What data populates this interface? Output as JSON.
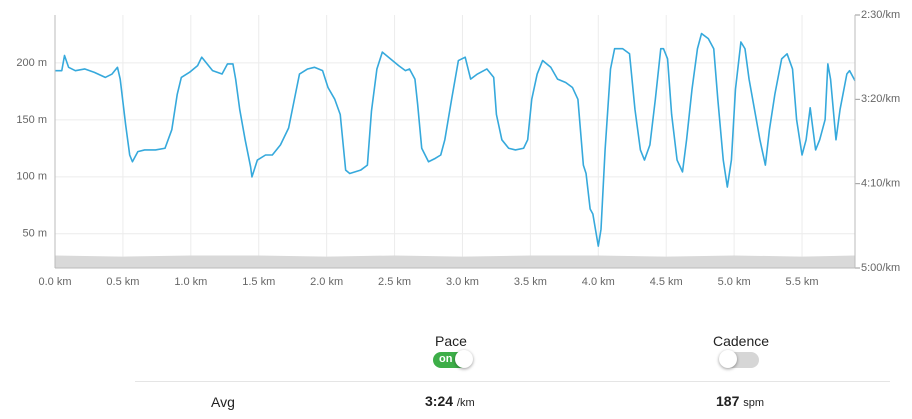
{
  "chart_data": {
    "type": "line",
    "x": [
      0,
      0.05,
      0.07,
      0.1,
      0.15,
      0.22,
      0.29,
      0.37,
      0.42,
      0.46,
      0.48,
      0.52,
      0.55,
      0.57,
      0.61,
      0.66,
      0.74,
      0.81,
      0.86,
      0.9,
      0.93,
      0.99,
      1.05,
      1.08,
      1.12,
      1.16,
      1.23,
      1.27,
      1.31,
      1.33,
      1.36,
      1.4,
      1.44,
      1.45,
      1.49,
      1.55,
      1.6,
      1.66,
      1.72,
      1.77,
      1.8,
      1.86,
      1.91,
      1.97,
      2.01,
      2.06,
      2.1,
      2.14,
      2.17,
      2.25,
      2.3,
      2.33,
      2.37,
      2.41,
      2.47,
      2.53,
      2.58,
      2.61,
      2.65,
      2.67,
      2.7,
      2.75,
      2.8,
      2.84,
      2.87,
      2.92,
      2.97,
      3.02,
      3.06,
      3.11,
      3.18,
      3.23,
      3.25,
      3.29,
      3.34,
      3.39,
      3.45,
      3.48,
      3.51,
      3.55,
      3.59,
      3.65,
      3.7,
      3.76,
      3.81,
      3.85,
      3.89,
      3.91,
      3.94,
      3.96,
      4.0,
      4.02,
      4.05,
      4.09,
      4.12,
      4.18,
      4.23,
      4.27,
      4.31,
      4.34,
      4.38,
      4.42,
      4.46,
      4.48,
      4.51,
      4.54,
      4.58,
      4.62,
      4.65,
      4.69,
      4.73,
      4.76,
      4.81,
      4.85,
      4.88,
      4.92,
      4.95,
      4.98,
      5.01,
      5.05,
      5.08,
      5.11,
      5.15,
      5.19,
      5.23,
      5.26,
      5.3,
      5.35,
      5.39,
      5.43,
      5.46,
      5.5,
      5.53,
      5.56,
      5.6,
      5.63,
      5.67,
      5.69,
      5.71,
      5.75,
      5.78,
      5.83,
      5.85,
      5.89
    ],
    "series": [
      {
        "color": "#36a9dc",
        "axis": "y2",
        "values": [
          183,
          183,
          174,
          181,
          183,
          182,
          184,
          187,
          185,
          181,
          188,
          215,
          233,
          237,
          231,
          230,
          230,
          229,
          218,
          197,
          187,
          184,
          180,
          175,
          179,
          183,
          185,
          179,
          179,
          188,
          206,
          224,
          240,
          246,
          236,
          233,
          233,
          227,
          217,
          197,
          185,
          182,
          181,
          183,
          193,
          200,
          209,
          242,
          244,
          242,
          239,
          207,
          182,
          172,
          176,
          180,
          183,
          182,
          188,
          203,
          229,
          237,
          235,
          233,
          224,
          200,
          177,
          175,
          188,
          185,
          182,
          187,
          209,
          224,
          229,
          230,
          229,
          224,
          200,
          185,
          177,
          181,
          188,
          190,
          193,
          200,
          239,
          244,
          265,
          268,
          287,
          277,
          230,
          182,
          170,
          170,
          173,
          206,
          230,
          236,
          227,
          200,
          170,
          170,
          176,
          209,
          236,
          243,
          224,
          194,
          170,
          161,
          164,
          170,
          200,
          236,
          252,
          236,
          194,
          166,
          170,
          188,
          206,
          224,
          239,
          218,
          197,
          176,
          173,
          182,
          212,
          233,
          224,
          205,
          230,
          224,
          212,
          179,
          188,
          224,
          206,
          185,
          183,
          189
        ]
      },
      {
        "type": "area",
        "color": "#d9d9d9",
        "x": [
          0,
          0.5,
          1,
          1.5,
          2,
          2.5,
          3,
          3.5,
          4,
          4.5,
          5,
          5.5,
          5.89
        ],
        "values": [
          31,
          30,
          31,
          31,
          30,
          31,
          30,
          31,
          31,
          30,
          31,
          30,
          31
        ]
      }
    ],
    "xlim": [
      0,
      5.89
    ],
    "xticks": [
      {
        "value": 0,
        "label": "0.0 km"
      },
      {
        "value": 0.5,
        "label": "0.5 km"
      },
      {
        "value": 1,
        "label": "1.0 km"
      },
      {
        "value": 1.5,
        "label": "1.5 km"
      },
      {
        "value": 2,
        "label": "2.0 km"
      },
      {
        "value": 2.5,
        "label": "2.5 km"
      },
      {
        "value": 3,
        "label": "3.0 km"
      },
      {
        "value": 3.5,
        "label": "3.5 km"
      },
      {
        "value": 4,
        "label": "4.0 km"
      },
      {
        "value": 4.5,
        "label": "4.5 km"
      },
      {
        "value": 5,
        "label": "5.0 km"
      },
      {
        "value": 5.5,
        "label": "5.5 km"
      }
    ],
    "ylim": [
      20,
      242
    ],
    "yticks": [
      {
        "value": 50,
        "label": "50 m"
      },
      {
        "value": 100,
        "label": "100 m"
      },
      {
        "value": 150,
        "label": "150 m"
      },
      {
        "value": 200,
        "label": "200 m"
      }
    ],
    "y2lim": [
      300,
      150
    ],
    "y2ticks": [
      {
        "value": 150,
        "label": "2:30/km"
      },
      {
        "value": 200,
        "label": "3:20/km"
      },
      {
        "value": 250,
        "label": "4:10/km"
      },
      {
        "value": 300,
        "label": "5:00/km"
      }
    ],
    "grid": true
  },
  "controls": [
    {
      "label": "Pace",
      "state_label": "on",
      "on": true
    },
    {
      "label": "Cadence",
      "on": false
    }
  ],
  "summary": {
    "label": "Avg",
    "pace": {
      "value": "3:24",
      "unit": "/km"
    },
    "cadence": {
      "value": "187",
      "unit": "spm"
    }
  }
}
